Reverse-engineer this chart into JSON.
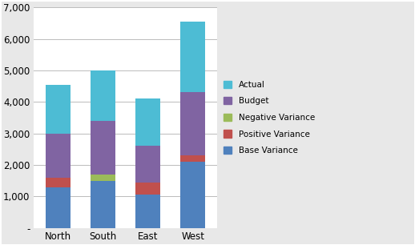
{
  "categories": [
    "North",
    "South",
    "East",
    "West"
  ],
  "base_variance": [
    1300,
    1500,
    1050,
    2100
  ],
  "positive_variance": [
    300,
    0,
    400,
    200
  ],
  "negative_variance": [
    0,
    200,
    0,
    0
  ],
  "budget": [
    1400,
    1700,
    1150,
    2000
  ],
  "actual": [
    1550,
    1600,
    1500,
    2250
  ],
  "colors": {
    "actual": "#4DBCD4",
    "budget": "#8064A2",
    "negative_variance": "#9BBB59",
    "positive_variance": "#C0504D",
    "base_variance": "#4F81BD"
  },
  "ylim": [
    0,
    7000
  ],
  "yticks": [
    0,
    1000,
    2000,
    3000,
    4000,
    5000,
    6000,
    7000
  ],
  "ytick_labels": [
    "-",
    "1,000",
    "2,000",
    "3,000",
    "4,000",
    "5,000",
    "6,000",
    "7,000"
  ],
  "legend_labels": [
    "Actual",
    "Budget",
    "Negative Variance",
    "Positive Variance",
    "Base Variance"
  ],
  "legend_colors_order": [
    "#4DBCD4",
    "#8064A2",
    "#9BBB59",
    "#C0504D",
    "#4F81BD"
  ],
  "background_color": "#E8E8E8",
  "plot_bg_color": "#FFFFFF",
  "grid_color": "#BBBBBB",
  "bar_width": 0.55
}
